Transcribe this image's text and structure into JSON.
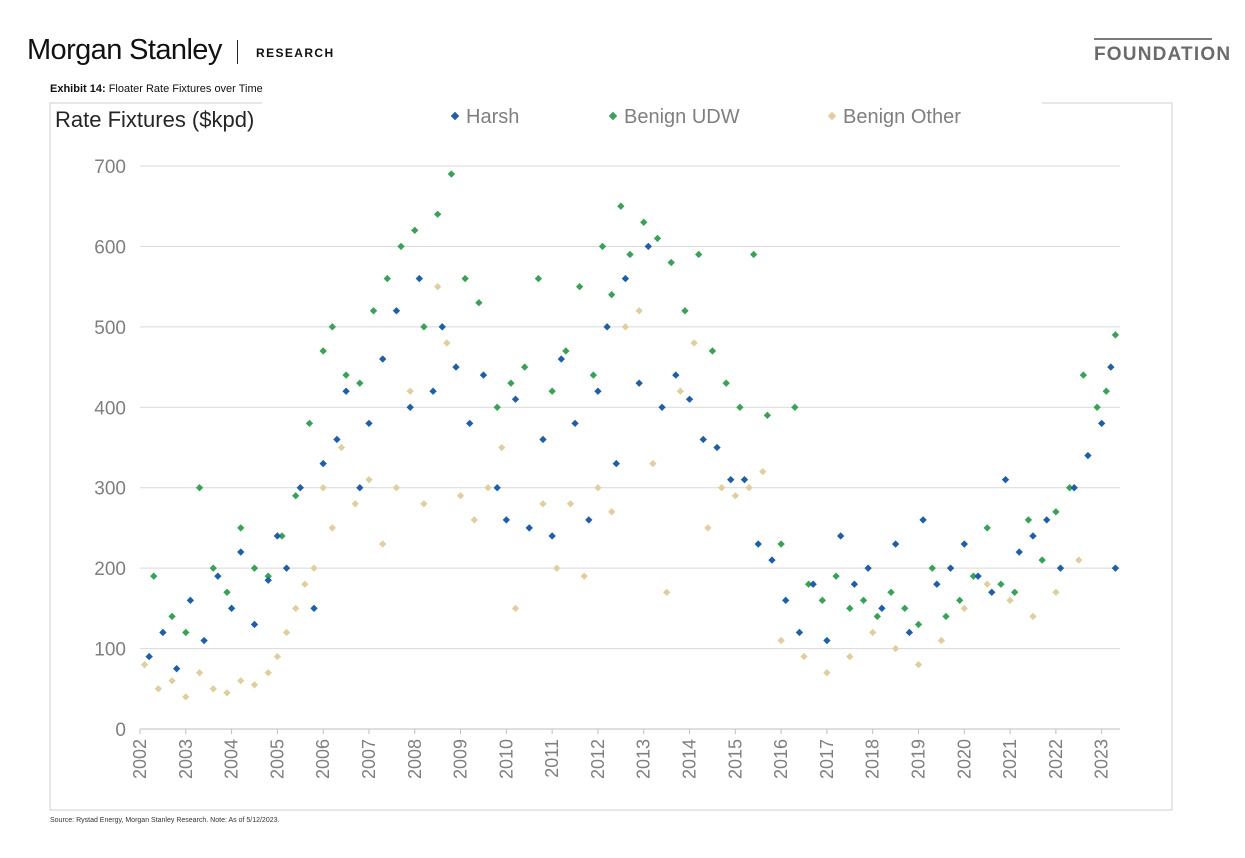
{
  "header": {
    "brand": "Morgan Stanley",
    "brand_sub": "RESEARCH",
    "foundation": "FOUNDATION"
  },
  "exhibit": {
    "label": "Exhibit 14:",
    "title": "Floater Rate Fixtures over Time"
  },
  "footer": {
    "source": "Source: Rystad Energy, Morgan Stanley Research. Note: As of 5/12/2023."
  },
  "chart_data": {
    "type": "scatter",
    "title": "",
    "ylabel": "Rate Fixtures ($kpd)",
    "xlabel": "",
    "ylim": [
      0,
      700
    ],
    "xlim": [
      2002,
      2023.4
    ],
    "yticks": [
      "0",
      "100",
      "200",
      "300",
      "400",
      "500",
      "600",
      "700"
    ],
    "xticks": [
      "2002",
      "2003",
      "2004",
      "2005",
      "2006",
      "2007",
      "2008",
      "2009",
      "2010",
      "2011",
      "2012",
      "2013",
      "2014",
      "2015",
      "2016",
      "2017",
      "2018",
      "2019",
      "2020",
      "2021",
      "2022",
      "2023"
    ],
    "grid": true,
    "legend_position": "top",
    "series": [
      {
        "name": "Harsh",
        "color": "#1f5fa8",
        "x": [
          2002.2,
          2002.5,
          2002.8,
          2003.1,
          2003.4,
          2003.7,
          2004.0,
          2004.2,
          2004.5,
          2004.8,
          2005.0,
          2005.2,
          2005.5,
          2005.8,
          2006.0,
          2006.3,
          2006.5,
          2006.8,
          2007.0,
          2007.3,
          2007.6,
          2007.9,
          2008.1,
          2008.4,
          2008.6,
          2008.9,
          2009.2,
          2009.5,
          2009.8,
          2010.0,
          2010.2,
          2010.5,
          2010.8,
          2011.0,
          2011.2,
          2011.5,
          2011.8,
          2012.0,
          2012.2,
          2012.4,
          2012.6,
          2012.9,
          2013.1,
          2013.4,
          2013.7,
          2014.0,
          2014.3,
          2014.6,
          2014.9,
          2015.2,
          2015.5,
          2015.8,
          2016.1,
          2016.4,
          2016.7,
          2017.0,
          2017.3,
          2017.6,
          2017.9,
          2018.2,
          2018.5,
          2018.8,
          2019.1,
          2019.4,
          2019.7,
          2020.0,
          2020.3,
          2020.6,
          2020.9,
          2021.2,
          2021.5,
          2021.8,
          2022.1,
          2022.4,
          2022.7,
          2023.0,
          2023.2,
          2023.3
        ],
        "y": [
          90,
          120,
          75,
          160,
          110,
          190,
          150,
          220,
          130,
          185,
          240,
          200,
          300,
          150,
          330,
          360,
          420,
          300,
          380,
          460,
          520,
          400,
          560,
          420,
          500,
          450,
          380,
          440,
          300,
          260,
          410,
          250,
          360,
          240,
          460,
          380,
          260,
          420,
          500,
          330,
          560,
          430,
          600,
          400,
          440,
          410,
          360,
          350,
          310,
          310,
          230,
          210,
          160,
          120,
          180,
          110,
          240,
          180,
          200,
          150,
          230,
          120,
          260,
          180,
          200,
          230,
          190,
          170,
          310,
          220,
          240,
          260,
          200,
          300,
          340,
          380,
          450,
          200
        ]
      },
      {
        "name": "Benign UDW",
        "color": "#3aa257",
        "x": [
          2002.3,
          2002.7,
          2003.0,
          2003.3,
          2003.6,
          2003.9,
          2004.2,
          2004.5,
          2004.8,
          2005.1,
          2005.4,
          2005.7,
          2006.0,
          2006.2,
          2006.5,
          2006.8,
          2007.1,
          2007.4,
          2007.7,
          2008.0,
          2008.2,
          2008.5,
          2008.8,
          2009.1,
          2009.4,
          2009.8,
          2010.1,
          2010.4,
          2010.7,
          2011.0,
          2011.3,
          2011.6,
          2011.9,
          2012.1,
          2012.3,
          2012.5,
          2012.7,
          2013.0,
          2013.3,
          2013.6,
          2013.9,
          2014.2,
          2014.5,
          2014.8,
          2015.1,
          2015.4,
          2015.7,
          2016.0,
          2016.3,
          2016.6,
          2016.9,
          2017.2,
          2017.5,
          2017.8,
          2018.1,
          2018.4,
          2018.7,
          2019.0,
          2019.3,
          2019.6,
          2019.9,
          2020.2,
          2020.5,
          2020.8,
          2021.1,
          2021.4,
          2021.7,
          2022.0,
          2022.3,
          2022.6,
          2022.9,
          2023.1,
          2023.3
        ],
        "y": [
          190,
          140,
          120,
          300,
          200,
          170,
          250,
          200,
          190,
          240,
          290,
          380,
          470,
          500,
          440,
          430,
          520,
          560,
          600,
          620,
          500,
          640,
          690,
          560,
          530,
          400,
          430,
          450,
          560,
          420,
          470,
          550,
          440,
          600,
          540,
          650,
          590,
          630,
          610,
          580,
          520,
          590,
          470,
          430,
          400,
          590,
          390,
          230,
          400,
          180,
          160,
          190,
          150,
          160,
          140,
          170,
          150,
          130,
          200,
          140,
          160,
          190,
          250,
          180,
          170,
          260,
          210,
          270,
          300,
          440,
          400,
          420,
          490
        ]
      },
      {
        "name": "Benign Other",
        "color": "#e0cf9e",
        "x": [
          2002.1,
          2002.4,
          2002.7,
          2003.0,
          2003.3,
          2003.6,
          2003.9,
          2004.2,
          2004.5,
          2004.8,
          2005.0,
          2005.2,
          2005.4,
          2005.6,
          2005.8,
          2006.0,
          2006.2,
          2006.4,
          2006.7,
          2007.0,
          2007.3,
          2007.6,
          2007.9,
          2008.2,
          2008.5,
          2008.7,
          2009.0,
          2009.3,
          2009.6,
          2009.9,
          2010.2,
          2010.5,
          2010.8,
          2011.1,
          2011.4,
          2011.7,
          2012.0,
          2012.3,
          2012.6,
          2012.9,
          2013.2,
          2013.5,
          2013.8,
          2014.1,
          2014.4,
          2014.7,
          2015.0,
          2015.3,
          2015.6,
          2016.0,
          2016.5,
          2017.0,
          2017.5,
          2018.0,
          2018.5,
          2019.0,
          2019.5,
          2020.0,
          2020.5,
          2021.0,
          2021.5,
          2022.0,
          2022.5
        ],
        "y": [
          80,
          50,
          60,
          40,
          70,
          50,
          45,
          60,
          55,
          70,
          90,
          120,
          150,
          180,
          200,
          300,
          250,
          350,
          280,
          310,
          230,
          300,
          420,
          280,
          550,
          480,
          290,
          260,
          300,
          350,
          150,
          250,
          280,
          200,
          280,
          190,
          300,
          270,
          500,
          520,
          330,
          170,
          420,
          480,
          250,
          300,
          290,
          300,
          320,
          110,
          90,
          70,
          90,
          120,
          100,
          80,
          110,
          150,
          180,
          160,
          140,
          170,
          210
        ]
      }
    ]
  }
}
